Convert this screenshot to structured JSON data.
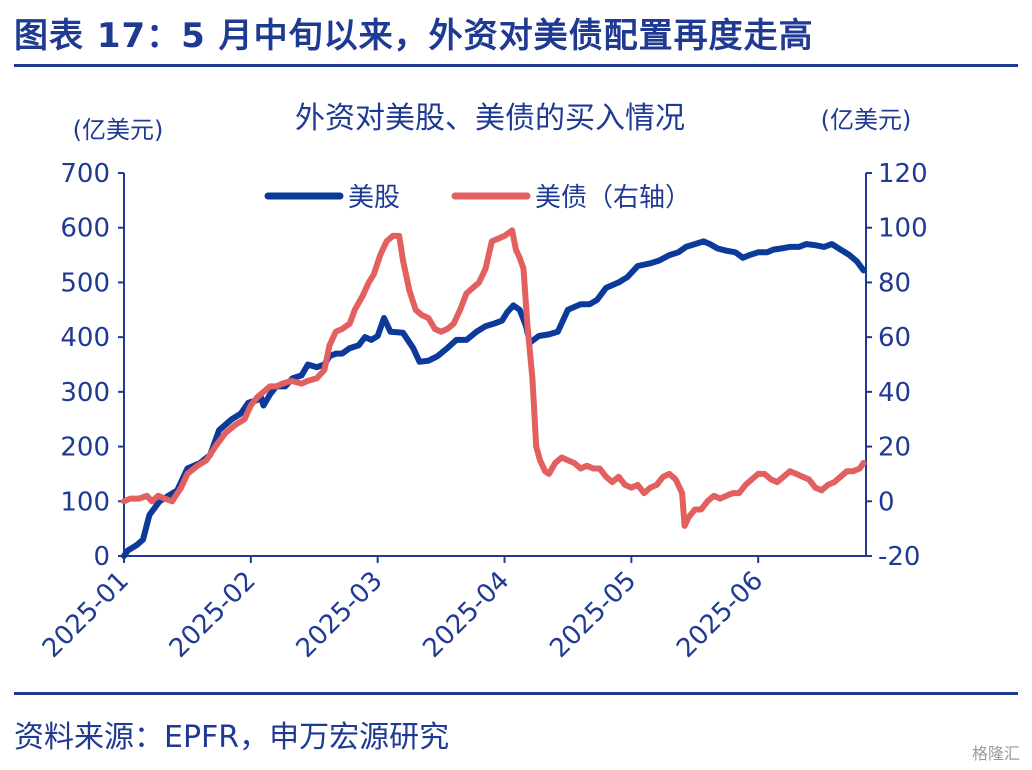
{
  "figure_title": "图表 17：5 月中旬以来，外资对美债配置再度走高",
  "source": "资料来源：EPFR，申万宏源研究",
  "watermark": "格隆汇",
  "colors": {
    "stocks": "#0b3a9b",
    "bonds": "#e2605f",
    "text": "#1f3a93"
  },
  "chart_data": {
    "type": "line",
    "title": "外资对美股、美债的买入情况",
    "ylabel_left": "(亿美元)",
    "ylabel_right": "(亿美元)",
    "ylim_left": [
      0,
      700
    ],
    "yticks_left": [
      "0",
      "100",
      "200",
      "300",
      "400",
      "500",
      "600",
      "700"
    ],
    "ylim_right": [
      -20,
      120
    ],
    "yticks_right": [
      "-20",
      "0",
      "20",
      "40",
      "60",
      "80",
      "100",
      "120"
    ],
    "x_ticks": [
      "2025-01",
      "2025-02",
      "2025-03",
      "2025-04",
      "2025-05",
      "2025-06"
    ],
    "x_range": [
      0,
      5.85
    ],
    "grid": false,
    "legend_position": "top",
    "series": [
      {
        "name": "美股",
        "axis": "left",
        "color": "#0b3a9b",
        "points": [
          [
            0.0,
            0
          ],
          [
            0.03,
            10
          ],
          [
            0.1,
            20
          ],
          [
            0.15,
            30
          ],
          [
            0.2,
            75
          ],
          [
            0.28,
            100
          ],
          [
            0.35,
            110
          ],
          [
            0.42,
            120
          ],
          [
            0.5,
            160
          ],
          [
            0.6,
            170
          ],
          [
            0.68,
            185
          ],
          [
            0.75,
            230
          ],
          [
            0.85,
            250
          ],
          [
            0.92,
            260
          ],
          [
            0.98,
            280
          ],
          [
            1.05,
            285
          ],
          [
            1.08,
            290
          ],
          [
            1.1,
            275
          ],
          [
            1.15,
            295
          ],
          [
            1.2,
            310
          ],
          [
            1.27,
            310
          ],
          [
            1.33,
            325
          ],
          [
            1.4,
            330
          ],
          [
            1.45,
            350
          ],
          [
            1.52,
            345
          ],
          [
            1.58,
            350
          ],
          [
            1.62,
            365
          ],
          [
            1.67,
            370
          ],
          [
            1.72,
            370
          ],
          [
            1.78,
            380
          ],
          [
            1.85,
            385
          ],
          [
            1.9,
            400
          ],
          [
            1.95,
            395
          ],
          [
            2.0,
            402
          ],
          [
            2.05,
            435
          ],
          [
            2.1,
            410
          ],
          [
            2.2,
            408
          ],
          [
            2.28,
            380
          ],
          [
            2.33,
            355
          ],
          [
            2.4,
            357
          ],
          [
            2.47,
            365
          ],
          [
            2.55,
            380
          ],
          [
            2.62,
            395
          ],
          [
            2.7,
            395
          ],
          [
            2.78,
            410
          ],
          [
            2.85,
            420
          ],
          [
            2.92,
            425
          ],
          [
            2.98,
            430
          ],
          [
            3.02,
            445
          ],
          [
            3.07,
            458
          ],
          [
            3.12,
            450
          ],
          [
            3.17,
            420
          ],
          [
            3.2,
            390
          ],
          [
            3.27,
            402
          ],
          [
            3.35,
            405
          ],
          [
            3.42,
            410
          ],
          [
            3.5,
            450
          ],
          [
            3.6,
            460
          ],
          [
            3.67,
            460
          ],
          [
            3.73,
            468
          ],
          [
            3.8,
            490
          ],
          [
            3.9,
            500
          ],
          [
            3.97,
            510
          ],
          [
            4.05,
            530
          ],
          [
            4.15,
            535
          ],
          [
            4.22,
            540
          ],
          [
            4.3,
            550
          ],
          [
            4.37,
            555
          ],
          [
            4.43,
            565
          ],
          [
            4.5,
            570
          ],
          [
            4.57,
            575
          ],
          [
            4.62,
            570
          ],
          [
            4.68,
            562
          ],
          [
            4.75,
            558
          ],
          [
            4.82,
            555
          ],
          [
            4.88,
            545
          ],
          [
            4.93,
            550
          ],
          [
            5.0,
            555
          ],
          [
            5.07,
            555
          ],
          [
            5.12,
            560
          ],
          [
            5.18,
            562
          ],
          [
            5.25,
            565
          ],
          [
            5.32,
            565
          ],
          [
            5.38,
            570
          ],
          [
            5.45,
            568
          ],
          [
            5.52,
            565
          ],
          [
            5.58,
            570
          ],
          [
            5.65,
            560
          ],
          [
            5.72,
            550
          ],
          [
            5.78,
            538
          ],
          [
            5.83,
            522
          ]
        ]
      },
      {
        "name": "美债（右轴）",
        "axis": "right",
        "color": "#e2605f",
        "points": [
          [
            0.0,
            0
          ],
          [
            0.05,
            1
          ],
          [
            0.12,
            1
          ],
          [
            0.18,
            2
          ],
          [
            0.22,
            0
          ],
          [
            0.27,
            2
          ],
          [
            0.32,
            1
          ],
          [
            0.38,
            0
          ],
          [
            0.45,
            5
          ],
          [
            0.5,
            10
          ],
          [
            0.58,
            13
          ],
          [
            0.65,
            15
          ],
          [
            0.72,
            20
          ],
          [
            0.8,
            25
          ],
          [
            0.88,
            28
          ],
          [
            0.95,
            30
          ],
          [
            1.0,
            35
          ],
          [
            1.05,
            38
          ],
          [
            1.1,
            40
          ],
          [
            1.15,
            42
          ],
          [
            1.2,
            42
          ],
          [
            1.25,
            43
          ],
          [
            1.32,
            44
          ],
          [
            1.4,
            43
          ],
          [
            1.45,
            44
          ],
          [
            1.52,
            45
          ],
          [
            1.58,
            48
          ],
          [
            1.62,
            57
          ],
          [
            1.67,
            62
          ],
          [
            1.72,
            63
          ],
          [
            1.78,
            65
          ],
          [
            1.82,
            70
          ],
          [
            1.88,
            75
          ],
          [
            1.93,
            80
          ],
          [
            1.97,
            83
          ],
          [
            2.02,
            90
          ],
          [
            2.07,
            95
          ],
          [
            2.12,
            97
          ],
          [
            2.17,
            97
          ],
          [
            2.2,
            88
          ],
          [
            2.25,
            77
          ],
          [
            2.3,
            70
          ],
          [
            2.35,
            68
          ],
          [
            2.4,
            67
          ],
          [
            2.45,
            63
          ],
          [
            2.5,
            62
          ],
          [
            2.55,
            63
          ],
          [
            2.6,
            65
          ],
          [
            2.65,
            70
          ],
          [
            2.7,
            76
          ],
          [
            2.75,
            78
          ],
          [
            2.8,
            80
          ],
          [
            2.85,
            85
          ],
          [
            2.9,
            95
          ],
          [
            2.95,
            96
          ],
          [
            3.0,
            97
          ],
          [
            3.03,
            98
          ],
          [
            3.06,
            99
          ],
          [
            3.09,
            92
          ],
          [
            3.12,
            89
          ],
          [
            3.15,
            85
          ],
          [
            3.18,
            65
          ],
          [
            3.22,
            45
          ],
          [
            3.25,
            20
          ],
          [
            3.28,
            15
          ],
          [
            3.32,
            11
          ],
          [
            3.35,
            10
          ],
          [
            3.4,
            14
          ],
          [
            3.45,
            16
          ],
          [
            3.5,
            15
          ],
          [
            3.55,
            14
          ],
          [
            3.6,
            12
          ],
          [
            3.65,
            13
          ],
          [
            3.7,
            12
          ],
          [
            3.75,
            12
          ],
          [
            3.8,
            9
          ],
          [
            3.85,
            7
          ],
          [
            3.9,
            9
          ],
          [
            3.95,
            6
          ],
          [
            4.0,
            5
          ],
          [
            4.05,
            6
          ],
          [
            4.1,
            3
          ],
          [
            4.15,
            5
          ],
          [
            4.2,
            6
          ],
          [
            4.25,
            9
          ],
          [
            4.3,
            10
          ],
          [
            4.35,
            8
          ],
          [
            4.4,
            3
          ],
          [
            4.42,
            -9
          ],
          [
            4.45,
            -6
          ],
          [
            4.5,
            -3
          ],
          [
            4.55,
            -3
          ],
          [
            4.6,
            0
          ],
          [
            4.65,
            2
          ],
          [
            4.7,
            1
          ],
          [
            4.75,
            2
          ],
          [
            4.8,
            3
          ],
          [
            4.85,
            3
          ],
          [
            4.9,
            6
          ],
          [
            4.95,
            8
          ],
          [
            5.0,
            10
          ],
          [
            5.05,
            10
          ],
          [
            5.1,
            8
          ],
          [
            5.15,
            7
          ],
          [
            5.2,
            9
          ],
          [
            5.25,
            11
          ],
          [
            5.3,
            10
          ],
          [
            5.35,
            9
          ],
          [
            5.4,
            8
          ],
          [
            5.45,
            5
          ],
          [
            5.5,
            4
          ],
          [
            5.55,
            6
          ],
          [
            5.6,
            7
          ],
          [
            5.65,
            9
          ],
          [
            5.7,
            11
          ],
          [
            5.75,
            11
          ],
          [
            5.8,
            12
          ],
          [
            5.83,
            14
          ]
        ]
      }
    ]
  }
}
